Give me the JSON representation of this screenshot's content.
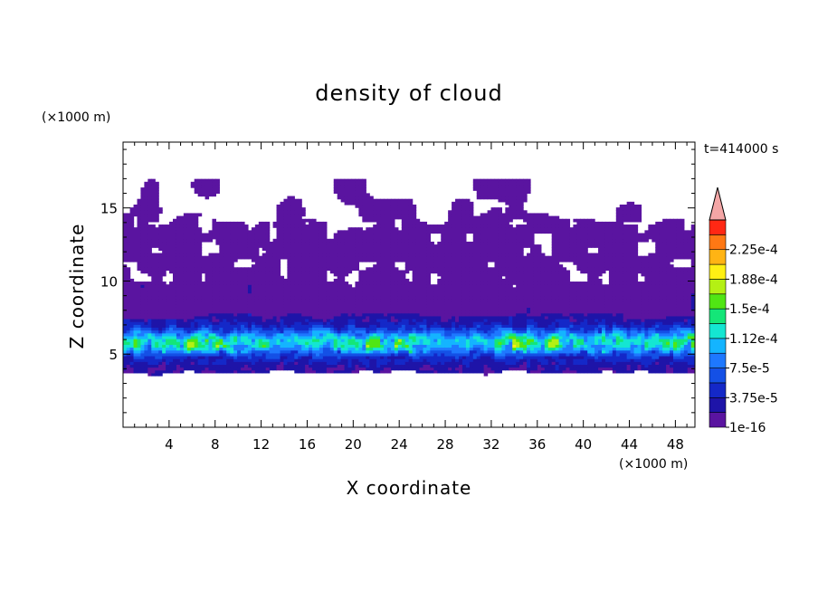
{
  "chart_data": {
    "type": "heatmap",
    "title": "density of cloud",
    "xlabel": "X coordinate",
    "ylabel": "Z coordinate",
    "x_unit": "(×1000 m)",
    "y_unit": "(×1000 m)",
    "time_label": "t=414000 s",
    "xlim": [
      0,
      49.7
    ],
    "ylim": [
      0,
      19.5
    ],
    "x_ticks": [
      4,
      8,
      12,
      16,
      20,
      24,
      28,
      32,
      36,
      40,
      44,
      48
    ],
    "y_ticks": [
      5,
      10,
      15
    ],
    "colorbar": {
      "labels": [
        "1e-16",
        "3.75e-5",
        "7.5e-5",
        "1.12e-4",
        "1.5e-4",
        "1.88e-4",
        "2.25e-4"
      ],
      "levels": [
        1e-16,
        1.875e-05,
        3.75e-05,
        5.625e-05,
        7.5e-05,
        9.375e-05,
        0.0001125,
        0.00013125,
        0.00015,
        0.00016875,
        0.0001875,
        0.00020625,
        0.000225,
        0.00024375
      ],
      "colors": [
        "#5a14a0",
        "#1e14a8",
        "#1428c8",
        "#1450e6",
        "#1e78ff",
        "#14b4ff",
        "#14e6d2",
        "#14e678",
        "#50e614",
        "#b4f014",
        "#fff014",
        "#ffb414",
        "#ff7814",
        "#ff2814"
      ],
      "over_color": "#f4a6a6"
    },
    "cloud_layers": [
      {
        "z_range": [
          3.6,
          8.0
        ],
        "description": "dense band",
        "peak_z": 5.8,
        "peak_value": 0.0002
      },
      {
        "z_range": [
          8.0,
          14.0
        ],
        "description": "low-density layer",
        "value": 1e-05
      }
    ]
  }
}
